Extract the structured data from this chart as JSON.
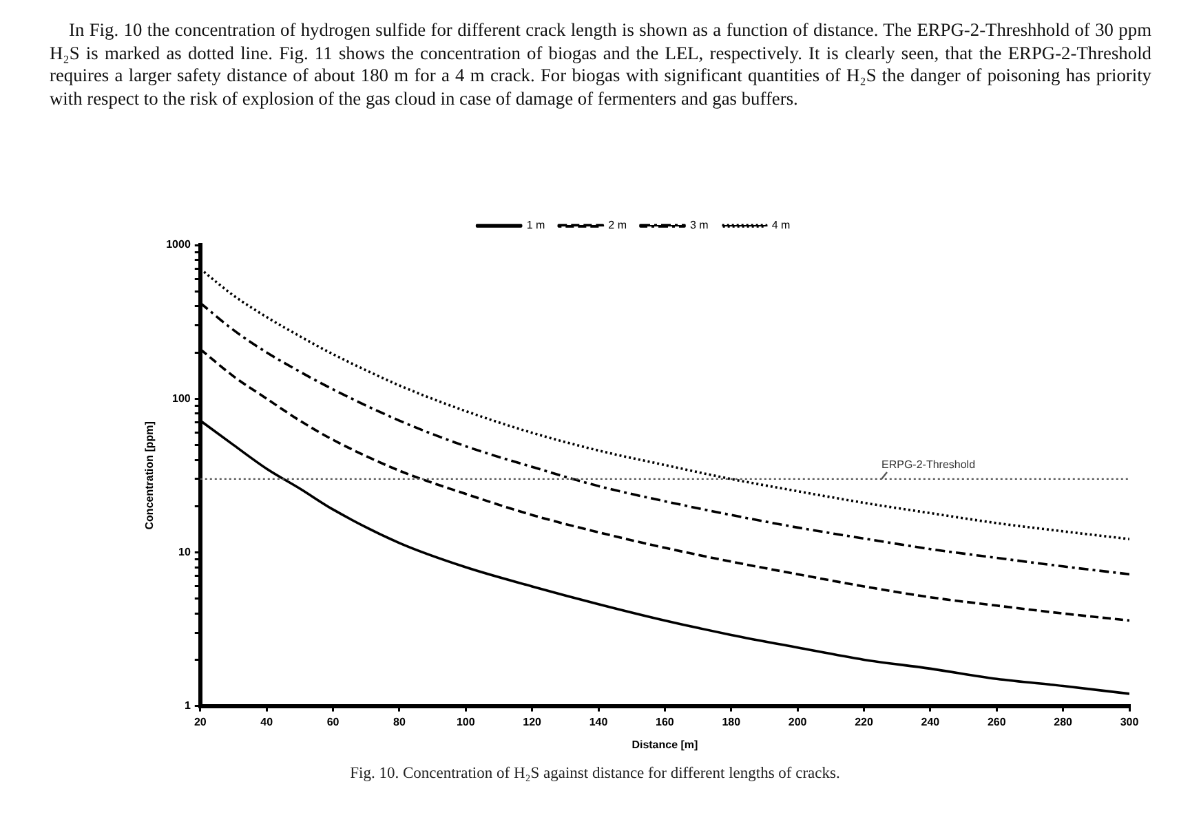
{
  "chart_data": {
    "type": "line",
    "xlabel": "Distance [m]",
    "ylabel": "Concentration [ppm]",
    "log": "y",
    "xlim": [
      20,
      300
    ],
    "xticks": [
      20,
      40,
      60,
      80,
      100,
      120,
      140,
      160,
      180,
      200,
      220,
      240,
      260,
      280,
      300
    ],
    "ylim": [
      1,
      1000
    ],
    "yticks": [
      1,
      {
        "value": 2,
        "label": null
      },
      {
        "value": 3,
        "label": null
      },
      {
        "value": 4,
        "label": null
      },
      {
        "value": 5,
        "label": null
      },
      {
        "value": 6,
        "label": null
      },
      {
        "value": 7,
        "label": null
      },
      {
        "value": 8,
        "label": null
      },
      {
        "value": 9,
        "label": null
      },
      10,
      {
        "value": 20,
        "label": null
      },
      {
        "value": 30,
        "label": null
      },
      {
        "value": 40,
        "label": null
      },
      {
        "value": 50,
        "label": null
      },
      {
        "value": 60,
        "label": null
      },
      {
        "value": 70,
        "label": null
      },
      {
        "value": 80,
        "label": null
      },
      {
        "value": 90,
        "label": null
      },
      100,
      {
        "value": 200,
        "label": null
      },
      {
        "value": 300,
        "label": null
      },
      {
        "value": 400,
        "label": null
      },
      {
        "value": 500,
        "label": null
      },
      {
        "value": 600,
        "label": null
      },
      {
        "value": 700,
        "label": null
      },
      {
        "value": 800,
        "label": null
      },
      {
        "value": 900,
        "label": null
      },
      1000
    ],
    "legend": "top",
    "marker": "none",
    "x": [
      20,
      30,
      40,
      50,
      60,
      80,
      100,
      120,
      140,
      160,
      180,
      200,
      220,
      240,
      260,
      280,
      300
    ],
    "series": [
      {
        "name": "1 m",
        "color": "#000000",
        "line_style": "solid",
        "values": [
          72,
          50,
          35,
          26,
          19,
          11.5,
          8,
          6,
          4.6,
          3.6,
          2.9,
          2.4,
          2,
          1.75,
          1.5,
          1.35,
          1.2
        ]
      },
      {
        "name": "2 m",
        "color": "#000000",
        "line_style": "dashed",
        "values": [
          210,
          140,
          100,
          72,
          54,
          34,
          24,
          17.5,
          13.5,
          10.7,
          8.7,
          7.2,
          6,
          5.1,
          4.5,
          4,
          3.6
        ]
      },
      {
        "name": "3 m",
        "color": "#000000",
        "line_style": "dashdot",
        "values": [
          420,
          280,
          200,
          150,
          115,
          72,
          49,
          36,
          27,
          21.5,
          17.5,
          14.5,
          12.3,
          10.5,
          9.2,
          8.1,
          7.2
        ]
      },
      {
        "name": "4 m",
        "color": "#000000",
        "line_style": "dotted",
        "values": [
          700,
          470,
          340,
          255,
          195,
          122,
          83,
          60,
          46,
          37,
          30,
          25,
          21,
          18,
          15.5,
          13.7,
          12.2
        ]
      }
    ],
    "ref_lines": [
      {
        "axis": "y",
        "value": 30,
        "label": "ERPG-2-Threshold",
        "line_style": "dotted",
        "color": "#555555"
      }
    ],
    "annotations": [
      "In Fig. 10 the concentration of hydrogen sulfide for different crack length is shown as a function of distance. The ERPG-2-Threshhold of 30 ppm H₂S is marked as dotted line. Fig. 11 shows the concentration of biogas and the LEL, respectively. It is clearly seen, that the ERPG-2-Threshold requires a larger safety distance of about 180 m for a 4 m crack. For biogas with significant quantities of H₂S the danger of poisoning has priority with respect to the risk of explosion of the gas cloud in case of damage of fermenters and gas buffers.",
      "Fig. 10. Concentration of H₂S against distance for different lengths of cracks."
    ]
  }
}
